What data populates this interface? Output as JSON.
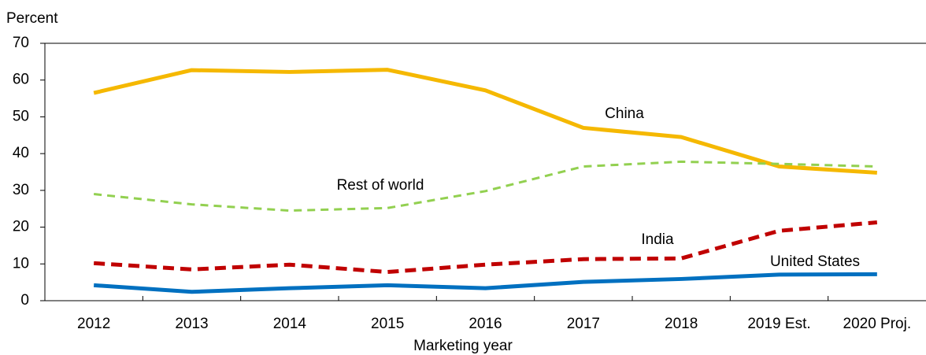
{
  "chart_data": {
    "type": "line",
    "y_label": "Percent",
    "x_label": "Marketing year",
    "categories": [
      "2012",
      "2013",
      "2014",
      "2015",
      "2016",
      "2017",
      "2018",
      "2019 Est.",
      "2020 Proj."
    ],
    "series": [
      {
        "name": "China",
        "color": "#f5b800",
        "dash": "solid",
        "values": [
          56.5,
          62.7,
          62.2,
          62.8,
          57.2,
          47,
          44.5,
          36.5,
          34.8
        ]
      },
      {
        "name": "Rest of world",
        "color": "#92d050",
        "dash": "dashed",
        "values": [
          29,
          26.2,
          24.5,
          25.2,
          29.8,
          36.5,
          37.8,
          37.2,
          36.5
        ]
      },
      {
        "name": "India",
        "color": "#c00000",
        "dash": "dashed",
        "values": [
          10.2,
          8.5,
          9.8,
          7.8,
          9.8,
          11.3,
          11.5,
          19,
          21.3
        ]
      },
      {
        "name": "United States",
        "color": "#0070c0",
        "dash": "solid",
        "values": [
          4.2,
          2.4,
          3.4,
          4.2,
          3.4,
          5.1,
          5.9,
          7.1,
          7.2
        ]
      }
    ],
    "ylim": [
      0,
      70
    ],
    "yticks": [
      0,
      10,
      20,
      30,
      40,
      50,
      60,
      70
    ],
    "grid": false
  }
}
